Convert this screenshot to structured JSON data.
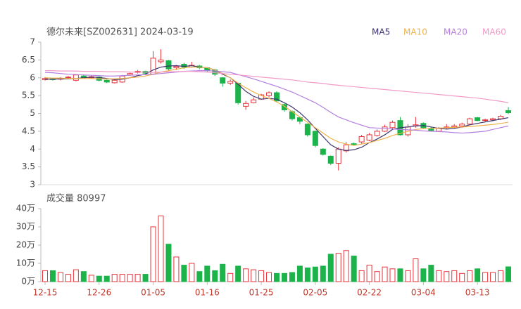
{
  "chart_data": {
    "type": "candlestick",
    "title": "德尔未来[SZ002631] 2024-03-19",
    "categories": [
      "12-15",
      null,
      null,
      null,
      null,
      null,
      null,
      "12-26",
      null,
      null,
      null,
      null,
      null,
      null,
      "01-05",
      null,
      null,
      null,
      null,
      null,
      null,
      "01-16",
      null,
      null,
      null,
      null,
      null,
      null,
      "01-25",
      null,
      null,
      null,
      null,
      null,
      null,
      "02-05",
      null,
      null,
      null,
      null,
      null,
      null,
      "02-22",
      null,
      null,
      null,
      null,
      null,
      null,
      "03-04",
      null,
      null,
      null,
      null,
      null,
      null,
      "03-13",
      null,
      null,
      null,
      null
    ],
    "open": [
      5.95,
      5.97,
      5.96,
      6.0,
      5.93,
      6.05,
      6.0,
      6.02,
      5.93,
      5.86,
      5.88,
      6.08,
      6.15,
      6.18,
      6.1,
      6.45,
      6.48,
      6.28,
      6.38,
      6.3,
      6.33,
      6.28,
      6.22,
      6.0,
      5.85,
      5.85,
      5.2,
      5.3,
      5.4,
      5.5,
      5.58,
      5.25,
      5.05,
      4.88,
      4.7,
      4.5,
      4.0,
      3.8,
      3.6,
      3.95,
      4.15,
      4.2,
      4.25,
      4.38,
      4.5,
      4.6,
      4.8,
      4.4,
      4.65,
      4.72,
      4.58,
      4.5,
      4.6,
      4.62,
      4.65,
      4.7,
      4.88,
      4.8,
      4.82,
      4.85,
      5.08
    ],
    "close": [
      5.98,
      5.95,
      5.98,
      6.02,
      6.08,
      6.01,
      6.03,
      5.93,
      5.88,
      5.93,
      6.05,
      6.12,
      6.18,
      6.13,
      6.55,
      6.5,
      6.25,
      6.32,
      6.3,
      6.35,
      6.28,
      6.2,
      6.1,
      5.85,
      5.9,
      5.3,
      5.28,
      5.38,
      5.52,
      5.58,
      5.35,
      5.1,
      4.85,
      4.78,
      4.4,
      4.1,
      3.85,
      3.6,
      4.0,
      4.12,
      4.13,
      4.35,
      4.4,
      4.5,
      4.62,
      4.75,
      4.4,
      4.62,
      4.68,
      4.6,
      4.52,
      4.58,
      4.62,
      4.65,
      4.7,
      4.85,
      4.8,
      4.82,
      4.85,
      4.92,
      5.02
    ],
    "high": [
      6.02,
      6.0,
      6.02,
      6.05,
      6.1,
      6.08,
      6.06,
      6.04,
      5.95,
      5.96,
      6.08,
      6.14,
      6.22,
      6.2,
      6.75,
      6.8,
      6.5,
      6.36,
      6.42,
      6.45,
      6.36,
      6.3,
      6.25,
      6.02,
      5.95,
      5.86,
      5.35,
      5.45,
      5.55,
      5.62,
      5.62,
      5.28,
      5.08,
      4.92,
      4.72,
      4.52,
      4.02,
      3.82,
      4.05,
      4.2,
      4.18,
      4.4,
      4.45,
      4.55,
      4.68,
      4.8,
      4.9,
      4.7,
      4.9,
      4.75,
      4.62,
      4.62,
      4.7,
      4.7,
      4.74,
      4.88,
      4.9,
      4.85,
      4.88,
      4.96,
      5.18
    ],
    "low": [
      5.92,
      5.92,
      5.93,
      5.97,
      5.9,
      5.98,
      5.97,
      5.9,
      5.85,
      5.84,
      5.86,
      6.05,
      6.12,
      6.1,
      6.08,
      6.4,
      6.2,
      6.22,
      6.25,
      6.28,
      6.24,
      6.15,
      6.05,
      5.75,
      5.8,
      5.25,
      5.1,
      5.28,
      5.38,
      5.45,
      5.32,
      5.05,
      4.8,
      4.7,
      4.35,
      4.05,
      3.82,
      3.55,
      3.4,
      3.9,
      4.1,
      4.15,
      4.22,
      4.35,
      4.48,
      4.55,
      4.38,
      4.35,
      4.6,
      4.58,
      4.5,
      4.48,
      4.55,
      4.58,
      4.6,
      4.68,
      4.78,
      4.76,
      4.78,
      4.82,
      4.98
    ],
    "up_color": "#e8333a",
    "down_color": "#1bb34a",
    "series": [
      {
        "name": "MA5",
        "color": "#3d3470",
        "values": [
          5.96,
          5.96,
          5.97,
          5.97,
          5.98,
          6.0,
          6.02,
          6.01,
          5.98,
          5.95,
          5.96,
          6.0,
          6.06,
          6.1,
          6.22,
          6.3,
          6.33,
          6.34,
          6.32,
          6.34,
          6.3,
          6.28,
          6.22,
          6.1,
          6.0,
          5.82,
          5.62,
          5.48,
          5.4,
          5.42,
          5.4,
          5.3,
          5.18,
          5.02,
          4.82,
          4.58,
          4.35,
          4.12,
          4.0,
          3.96,
          3.98,
          4.05,
          4.18,
          4.28,
          4.4,
          4.55,
          4.6,
          4.62,
          4.65,
          4.66,
          4.62,
          4.58,
          4.56,
          4.58,
          4.62,
          4.68,
          4.72,
          4.76,
          4.8,
          4.84,
          4.88
        ]
      },
      {
        "name": "MA10",
        "color": "#f0b24a",
        "values": [
          6.0,
          5.99,
          5.99,
          5.98,
          5.98,
          5.98,
          5.98,
          5.97,
          5.97,
          5.97,
          5.98,
          6.0,
          6.02,
          6.05,
          6.1,
          6.16,
          6.2,
          6.24,
          6.28,
          6.3,
          6.3,
          6.28,
          6.22,
          6.12,
          6.0,
          5.85,
          5.72,
          5.6,
          5.5,
          5.42,
          5.32,
          5.2,
          5.05,
          4.9,
          4.75,
          4.6,
          4.45,
          4.3,
          4.2,
          4.14,
          4.1,
          4.14,
          4.18,
          4.24,
          4.3,
          4.38,
          4.44,
          4.5,
          4.55,
          4.57,
          4.58,
          4.59,
          4.6,
          4.61,
          4.62,
          4.63,
          4.65,
          4.67,
          4.69,
          4.72,
          4.75
        ]
      },
      {
        "name": "MA20",
        "color": "#b57fe0",
        "values": [
          6.15,
          6.14,
          6.12,
          6.1,
          6.09,
          6.08,
          6.07,
          6.06,
          6.05,
          6.05,
          6.06,
          6.07,
          6.08,
          6.09,
          6.1,
          6.12,
          6.14,
          6.16,
          6.18,
          6.19,
          6.2,
          6.2,
          6.19,
          6.17,
          6.15,
          6.09,
          6.03,
          5.97,
          5.9,
          5.83,
          5.76,
          5.68,
          5.6,
          5.5,
          5.4,
          5.3,
          5.17,
          5.03,
          4.9,
          4.82,
          4.74,
          4.67,
          4.6,
          4.59,
          4.58,
          4.56,
          4.55,
          4.54,
          4.53,
          4.51,
          4.5,
          4.49,
          4.48,
          4.46,
          4.45,
          4.46,
          4.48,
          4.5,
          4.55,
          4.6,
          4.65
        ]
      },
      {
        "name": "MA60",
        "color": "#f29ac8",
        "values": [
          6.2,
          6.2,
          6.19,
          6.19,
          6.19,
          6.18,
          6.18,
          6.18,
          6.17,
          6.17,
          6.17,
          6.16,
          6.16,
          6.16,
          6.15,
          6.16,
          6.17,
          6.17,
          6.18,
          6.18,
          6.17,
          6.16,
          6.14,
          6.12,
          6.1,
          6.08,
          6.06,
          6.04,
          6.02,
          6.0,
          5.98,
          5.96,
          5.94,
          5.91,
          5.88,
          5.86,
          5.84,
          5.81,
          5.79,
          5.77,
          5.75,
          5.73,
          5.71,
          5.69,
          5.67,
          5.65,
          5.63,
          5.61,
          5.59,
          5.57,
          5.55,
          5.53,
          5.51,
          5.49,
          5.47,
          5.45,
          5.43,
          5.4,
          5.37,
          5.34,
          5.3
        ]
      }
    ],
    "ylim": [
      3,
      7
    ],
    "yticks": [
      3,
      3.5,
      4,
      4.5,
      5,
      5.5,
      6,
      6.5,
      7
    ],
    "volume": {
      "title": "成交量 80997",
      "values": [
        6,
        6,
        5,
        4,
        6.5,
        5.5,
        3.5,
        3,
        3,
        4,
        4,
        4,
        4,
        4,
        30,
        36,
        20.5,
        13.5,
        9,
        10,
        5.5,
        8.5,
        6,
        9.5,
        4.5,
        8.5,
        7,
        6.5,
        6,
        5,
        4.5,
        4.5,
        5,
        8.5,
        7.5,
        8,
        8.5,
        15,
        15.5,
        17,
        14,
        6,
        9,
        5.5,
        8,
        7,
        7,
        6,
        12.5,
        7,
        9,
        6,
        5.5,
        6,
        4.5,
        6,
        7,
        5,
        5,
        6,
        8.1
      ],
      "ylim": [
        0,
        40
      ],
      "yticks": [
        {
          "value": 0,
          "label": "0万"
        },
        {
          "value": 10,
          "label": "10万"
        },
        {
          "value": 20,
          "label": "20万"
        },
        {
          "value": 30,
          "label": "30万"
        },
        {
          "value": 40,
          "label": "40万"
        }
      ]
    }
  }
}
